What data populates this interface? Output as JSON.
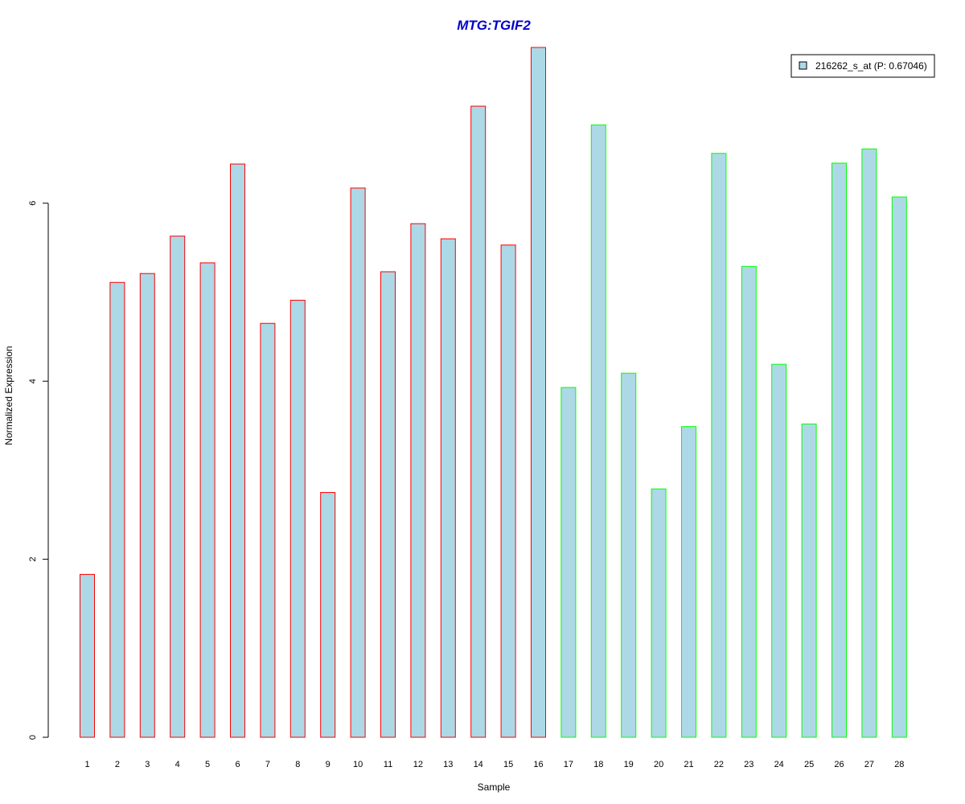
{
  "chart_data": {
    "type": "bar",
    "title": "MTG:TGIF2",
    "title_color": "#0000CC",
    "xlabel": "Sample",
    "ylabel": "Normalized Expression",
    "ylim": [
      0,
      7.75
    ],
    "yticks": [
      0,
      2,
      4,
      6
    ],
    "grid": false,
    "legend_position": "top-right",
    "series": [
      {
        "name": "216262_s_at (P: 0.67046)",
        "fill": "#ADD8E6",
        "values": [
          1.83,
          5.11,
          5.21,
          5.63,
          5.33,
          6.44,
          4.65,
          4.91,
          2.75,
          6.17,
          5.23,
          5.77,
          5.6,
          7.09,
          5.53,
          7.75,
          3.93,
          6.88,
          4.09,
          2.79,
          3.49,
          6.56,
          5.29,
          4.19,
          3.52,
          6.45,
          6.61,
          6.07
        ]
      }
    ],
    "categories": [
      "1",
      "2",
      "3",
      "4",
      "5",
      "6",
      "7",
      "8",
      "9",
      "10",
      "11",
      "12",
      "13",
      "14",
      "15",
      "16",
      "17",
      "18",
      "19",
      "20",
      "21",
      "22",
      "23",
      "24",
      "25",
      "26",
      "27",
      "28"
    ],
    "bar_border_colors": [
      "#FF0000",
      "#FF0000",
      "#FF0000",
      "#FF0000",
      "#FF0000",
      "#FF0000",
      "#FF0000",
      "#FF0000",
      "#FF0000",
      "#FF0000",
      "#FF0000",
      "#FF0000",
      "#FF0000",
      "#FF0000",
      "#FF0000",
      "#FF0000",
      "#00FF00",
      "#00FF00",
      "#00FF00",
      "#00FF00",
      "#00FF00",
      "#00FF00",
      "#00FF00",
      "#00FF00",
      "#00FF00",
      "#00FF00",
      "#00FF00",
      "#00FF00"
    ]
  }
}
